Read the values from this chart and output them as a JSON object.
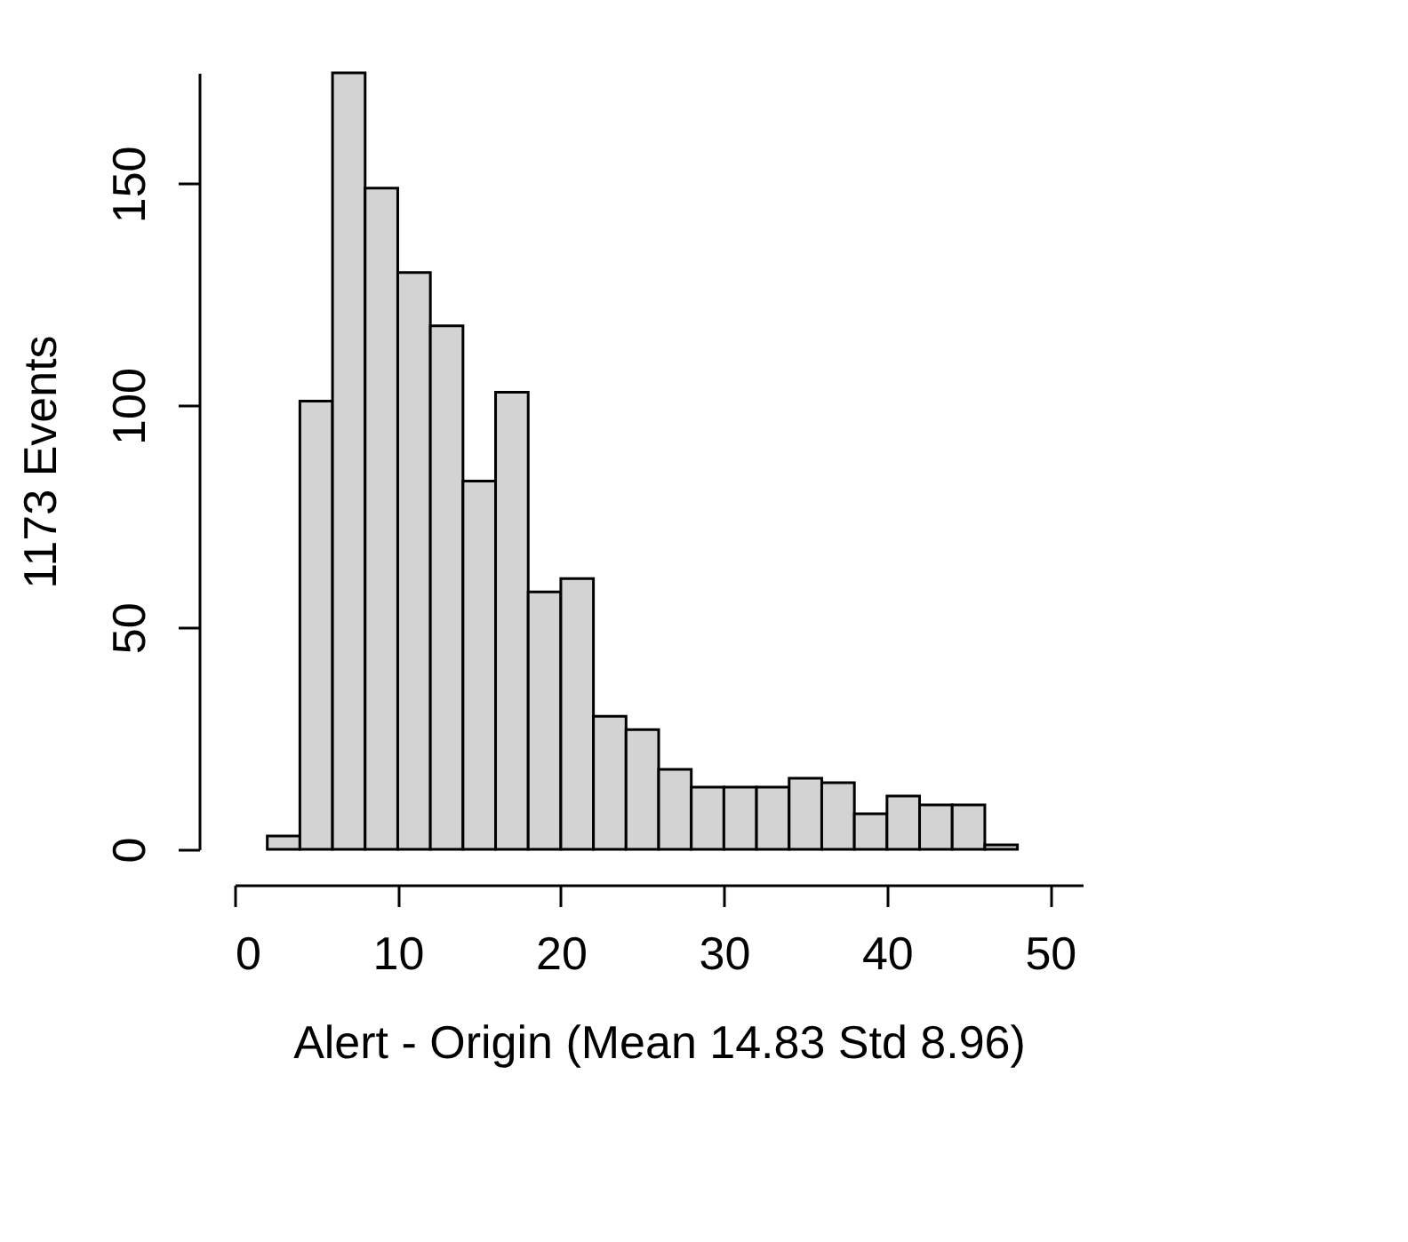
{
  "chart_data": {
    "type": "histogram",
    "xlabel": "Alert - Origin (Mean 14.83  Std 8.96)",
    "ylabel": "1173 Events",
    "bins": [
      2,
      4,
      6,
      8,
      10,
      12,
      14,
      16,
      18,
      20,
      22,
      24,
      26,
      28,
      30,
      32,
      34,
      36,
      38,
      40,
      42,
      44,
      46,
      48
    ],
    "values": [
      3,
      101,
      175,
      149,
      130,
      118,
      83,
      103,
      58,
      61,
      30,
      27,
      18,
      14,
      14,
      14,
      16,
      15,
      8,
      12,
      10,
      10,
      1
    ],
    "color": "#d3d3d3",
    "xlim": [
      0,
      52
    ],
    "xticks": [
      0,
      10,
      20,
      30,
      40,
      50
    ],
    "ylim": [
      0,
      175
    ],
    "yticks": [
      0,
      50,
      100,
      150
    ],
    "grid": false
  }
}
